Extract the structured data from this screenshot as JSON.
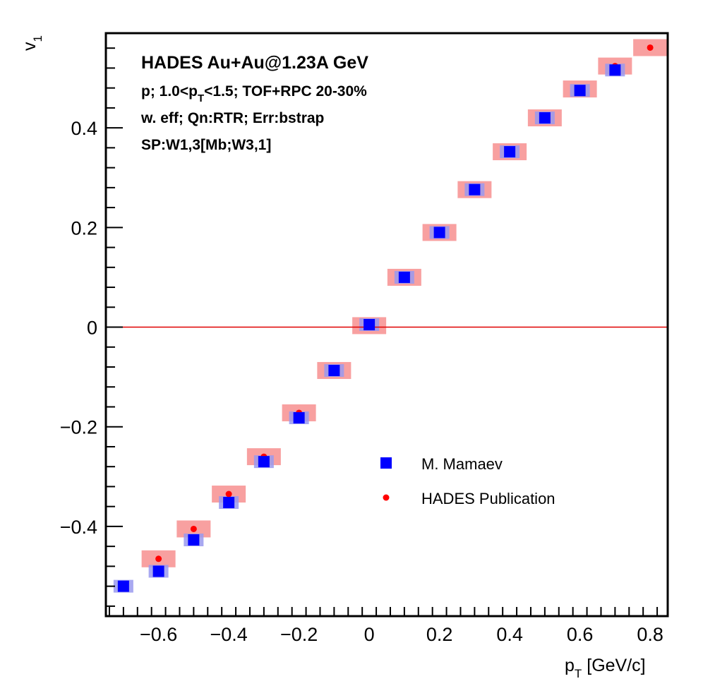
{
  "chart_data": {
    "type": "scatter",
    "title": "",
    "xlabel": {
      "main": "p",
      "sub": "T",
      "unit": " [GeV/c]"
    },
    "ylabel": {
      "main": "v",
      "sub": "1"
    },
    "xlim": [
      -0.75,
      0.85
    ],
    "ylim": [
      -0.58,
      0.59
    ],
    "x_ticks": [
      -0.6,
      -0.4,
      -0.2,
      0,
      0.2,
      0.4,
      0.6,
      0.8
    ],
    "x_tick_labels": [
      "−0.6",
      "−0.4",
      "−0.2",
      "0",
      "0.2",
      "0.4",
      "0.6",
      "0.8"
    ],
    "y_ticks": [
      -0.4,
      -0.2,
      0,
      0.2,
      0.4
    ],
    "y_tick_labels": [
      "−0.4",
      "−0.2",
      "0",
      "0.2",
      "0.4"
    ],
    "grid": false,
    "reference_line": {
      "y": 0,
      "color": "#e00000"
    },
    "annotations": {
      "line1": "HADES Au+Au@1.23A GeV",
      "line2_a": "p; 1.0<p",
      "line2_sub": "T",
      "line2_b": "<1.5; TOF+RPC 20-30%",
      "line3": "w. eff; Qn:RTR; Err:bstrap",
      "line4": "SP:W1,3[Mb;W3,1]"
    },
    "legend_position": "center-right",
    "series": [
      {
        "name": "M. Mamaev",
        "marker": "square",
        "color": "#0000ff",
        "sys_color": "#9999ee",
        "x": [
          -0.7,
          -0.6,
          -0.5,
          -0.4,
          -0.3,
          -0.2,
          -0.1,
          0.0,
          0.1,
          0.2,
          0.3,
          0.4,
          0.5,
          0.6,
          0.7
        ],
        "y": [
          -0.52,
          -0.49,
          -0.427,
          -0.352,
          -0.27,
          -0.182,
          -0.087,
          0.005,
          0.1,
          0.19,
          0.276,
          0.352,
          0.42,
          0.475,
          0.516
        ]
      },
      {
        "name": "HADES Publication",
        "marker": "circle",
        "color": "#ff0000",
        "sys_color": "#f8a0a0",
        "x": [
          -0.6,
          -0.5,
          -0.4,
          -0.3,
          -0.2,
          -0.1,
          0.0,
          0.1,
          0.2,
          0.3,
          0.4,
          0.5,
          0.6,
          0.7,
          0.8
        ],
        "y": [
          -0.465,
          -0.405,
          -0.335,
          -0.26,
          -0.172,
          -0.087,
          0.003,
          0.1,
          0.19,
          0.276,
          0.352,
          0.42,
          0.478,
          0.524,
          0.561
        ]
      }
    ]
  }
}
